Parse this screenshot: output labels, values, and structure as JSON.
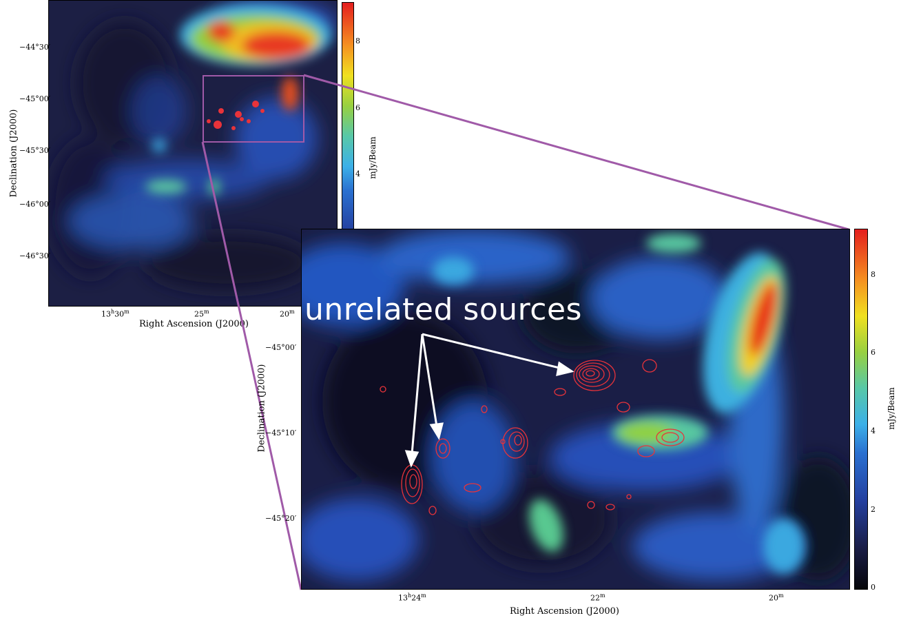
{
  "overview": {
    "dec_ticks": [
      "−44°30′",
      "−45°00′",
      "−45°30′",
      "−46°00′",
      "−46°30′"
    ],
    "ra_ticks": [
      {
        "hour": "13",
        "hour_unit": "h",
        "min": "30",
        "min_unit": "m"
      },
      {
        "hour": "",
        "hour_unit": "",
        "min": "25",
        "min_unit": "m"
      },
      {
        "hour": "",
        "hour_unit": "",
        "min": "20",
        "min_unit": "m"
      }
    ],
    "xlabel": "Right Ascension (J2000)",
    "ylabel": "Declination (J2000)",
    "colorbar": {
      "label": "mJy/Beam",
      "ticks": [
        "8",
        "6",
        "4"
      ]
    }
  },
  "zoom": {
    "dec_ticks": [
      "−45°00′",
      "−45°10′",
      "−45°20′"
    ],
    "ra_ticks": [
      {
        "hour": "13",
        "hour_unit": "h",
        "min": "24",
        "min_unit": "m"
      },
      {
        "hour": "",
        "hour_unit": "",
        "min": "22",
        "min_unit": "m"
      },
      {
        "hour": "",
        "hour_unit": "",
        "min": "20",
        "min_unit": "m"
      }
    ],
    "xlabel": "Right Ascension (J2000)",
    "ylabel": "Declination (J2000)",
    "colorbar": {
      "label": "mJy/Beam",
      "ticks": [
        "8",
        "6",
        "4",
        "2",
        "0"
      ]
    }
  },
  "annotation": {
    "text": "unrelated sources"
  },
  "colors": {
    "zoom_box": "#a05aa8",
    "contours": "#e8333a",
    "arrows": "#ffffff",
    "colormap": [
      "#0a0a14",
      "#1a2050",
      "#2a55b0",
      "#3aa8e0",
      "#5cc8a0",
      "#a8d83a",
      "#f0e020",
      "#f59a20",
      "#e83020"
    ]
  }
}
